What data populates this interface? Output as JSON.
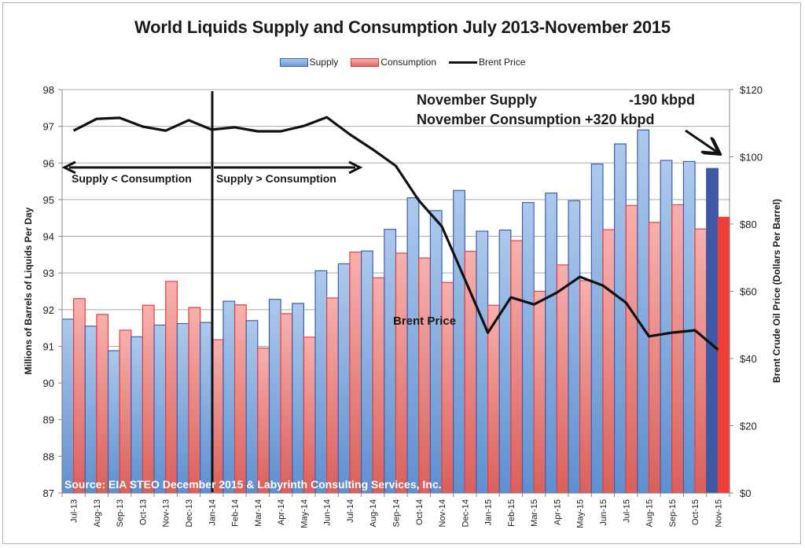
{
  "chart_data": {
    "type": "bar",
    "title": "World Liquids Supply and Consumption July 2013-November 2015",
    "ylabel": "Millions of Barrels of Liquids Per Day",
    "y2label": "Brent Crude Oil Price (Dollars Per Barrel)",
    "xlabel": "",
    "ylim": [
      87,
      98
    ],
    "y2lim": [
      0,
      120
    ],
    "yticks": [
      "87",
      "88",
      "89",
      "90",
      "91",
      "92",
      "93",
      "94",
      "95",
      "96",
      "97",
      "98"
    ],
    "y2ticks": [
      "$0",
      "$20",
      "$40",
      "$60",
      "$80",
      "$100",
      "$120"
    ],
    "grid": true,
    "legend_position": "top-center",
    "categories": [
      "Jul-13",
      "Aug-13",
      "Sep-13",
      "Oct-13",
      "Nov-13",
      "Dec-13",
      "Jan-14",
      "Feb-14",
      "Mar-14",
      "Apr-14",
      "May-14",
      "Jun-14",
      "Jul-14",
      "Aug-14",
      "Sep-14",
      "Oct-14",
      "Nov-14",
      "Dec-14",
      "Jan-15",
      "Feb-15",
      "Mar-15",
      "Apr-15",
      "May-15",
      "Jun-15",
      "Jul-15",
      "Aug-15",
      "Sep-15",
      "Oct-15",
      "Nov-15"
    ],
    "series": [
      {
        "name": "Supply",
        "type": "bar",
        "axis": "left",
        "color": "#6e9bd6",
        "highlight_last_color": "#3f58a6",
        "values": [
          91.74,
          91.55,
          90.88,
          91.26,
          91.58,
          91.62,
          91.65,
          92.23,
          91.7,
          92.28,
          92.17,
          93.06,
          93.25,
          93.6,
          94.19,
          95.05,
          94.7,
          95.25,
          94.14,
          94.17,
          94.92,
          95.18,
          94.97,
          95.97,
          96.52,
          96.9,
          96.07,
          96.04,
          95.85
        ]
      },
      {
        "name": "Consumption",
        "type": "bar",
        "axis": "left",
        "color": "#e57a76",
        "highlight_last_color": "#ee3d37",
        "values": [
          92.3,
          91.87,
          91.44,
          92.12,
          92.77,
          92.06,
          91.18,
          92.13,
          90.95,
          91.89,
          91.25,
          92.32,
          93.57,
          92.87,
          93.54,
          93.41,
          92.74,
          93.59,
          92.12,
          93.88,
          92.5,
          93.22,
          92.79,
          94.18,
          94.84,
          94.38,
          94.86,
          94.2,
          94.52
        ]
      },
      {
        "name": "Brent Price",
        "type": "line",
        "axis": "right",
        "color": "#111111",
        "values": [
          107.8,
          111.3,
          111.6,
          109.0,
          107.8,
          110.9,
          108.1,
          108.8,
          107.6,
          107.6,
          109.2,
          111.8,
          106.7,
          102.2,
          97.3,
          87.0,
          79.3,
          63.6,
          47.7,
          58.2,
          56.1,
          59.6,
          64.3,
          61.7,
          56.6,
          46.6,
          47.7,
          48.4,
          42.6
        ]
      }
    ],
    "annotations": {
      "nov_supply_label": "November Supply",
      "nov_supply_value": "-190  kbpd",
      "nov_consumption_label": "November Consumption",
      "nov_consumption_value": "+320 kbpd",
      "left_region": "Supply < Consumption",
      "right_region": "Supply > Consumption",
      "divider_at": "Jan-14",
      "brent_label": "Brent Price",
      "source": "Source:  EIA STEO December 2015 & Labyrinth Consulting Services, Inc."
    }
  },
  "legend": {
    "supply": "Supply",
    "consumption": "Consumption",
    "brent": "Brent Price"
  }
}
